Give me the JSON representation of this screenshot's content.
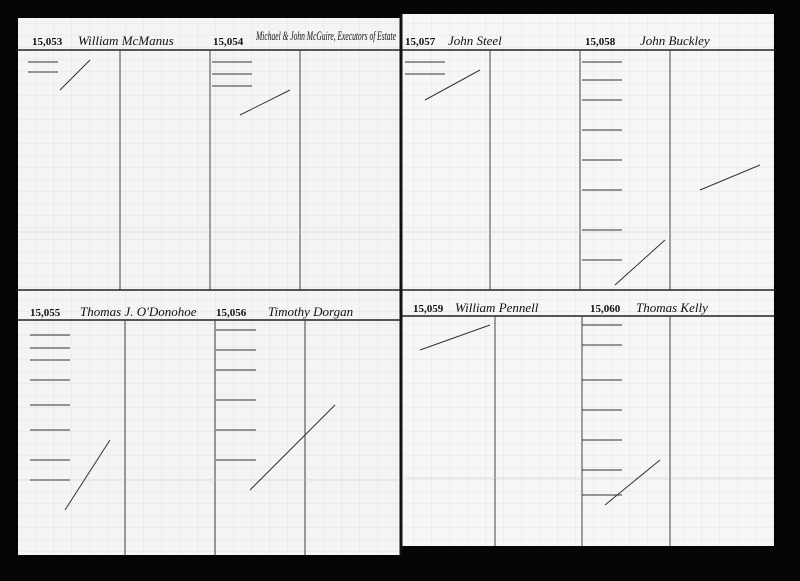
{
  "pages": [
    {
      "accounts": [
        {
          "number": "15,053",
          "name": "William McManus"
        },
        {
          "number": "15,054",
          "name": "Michael & John McGuire, Executors of Estate"
        },
        {
          "number": "15,055",
          "name": "Thomas J. O'Donohoe"
        },
        {
          "number": "15,056",
          "name": "Timothy Dorgan"
        }
      ]
    },
    {
      "accounts": [
        {
          "number": "15,057",
          "name": "John Steel"
        },
        {
          "number": "15,058",
          "name": "John Buckley"
        },
        {
          "number": "15,059",
          "name": "William Pennell"
        },
        {
          "number": "15,060",
          "name": "Thomas Kelly"
        }
      ]
    }
  ]
}
